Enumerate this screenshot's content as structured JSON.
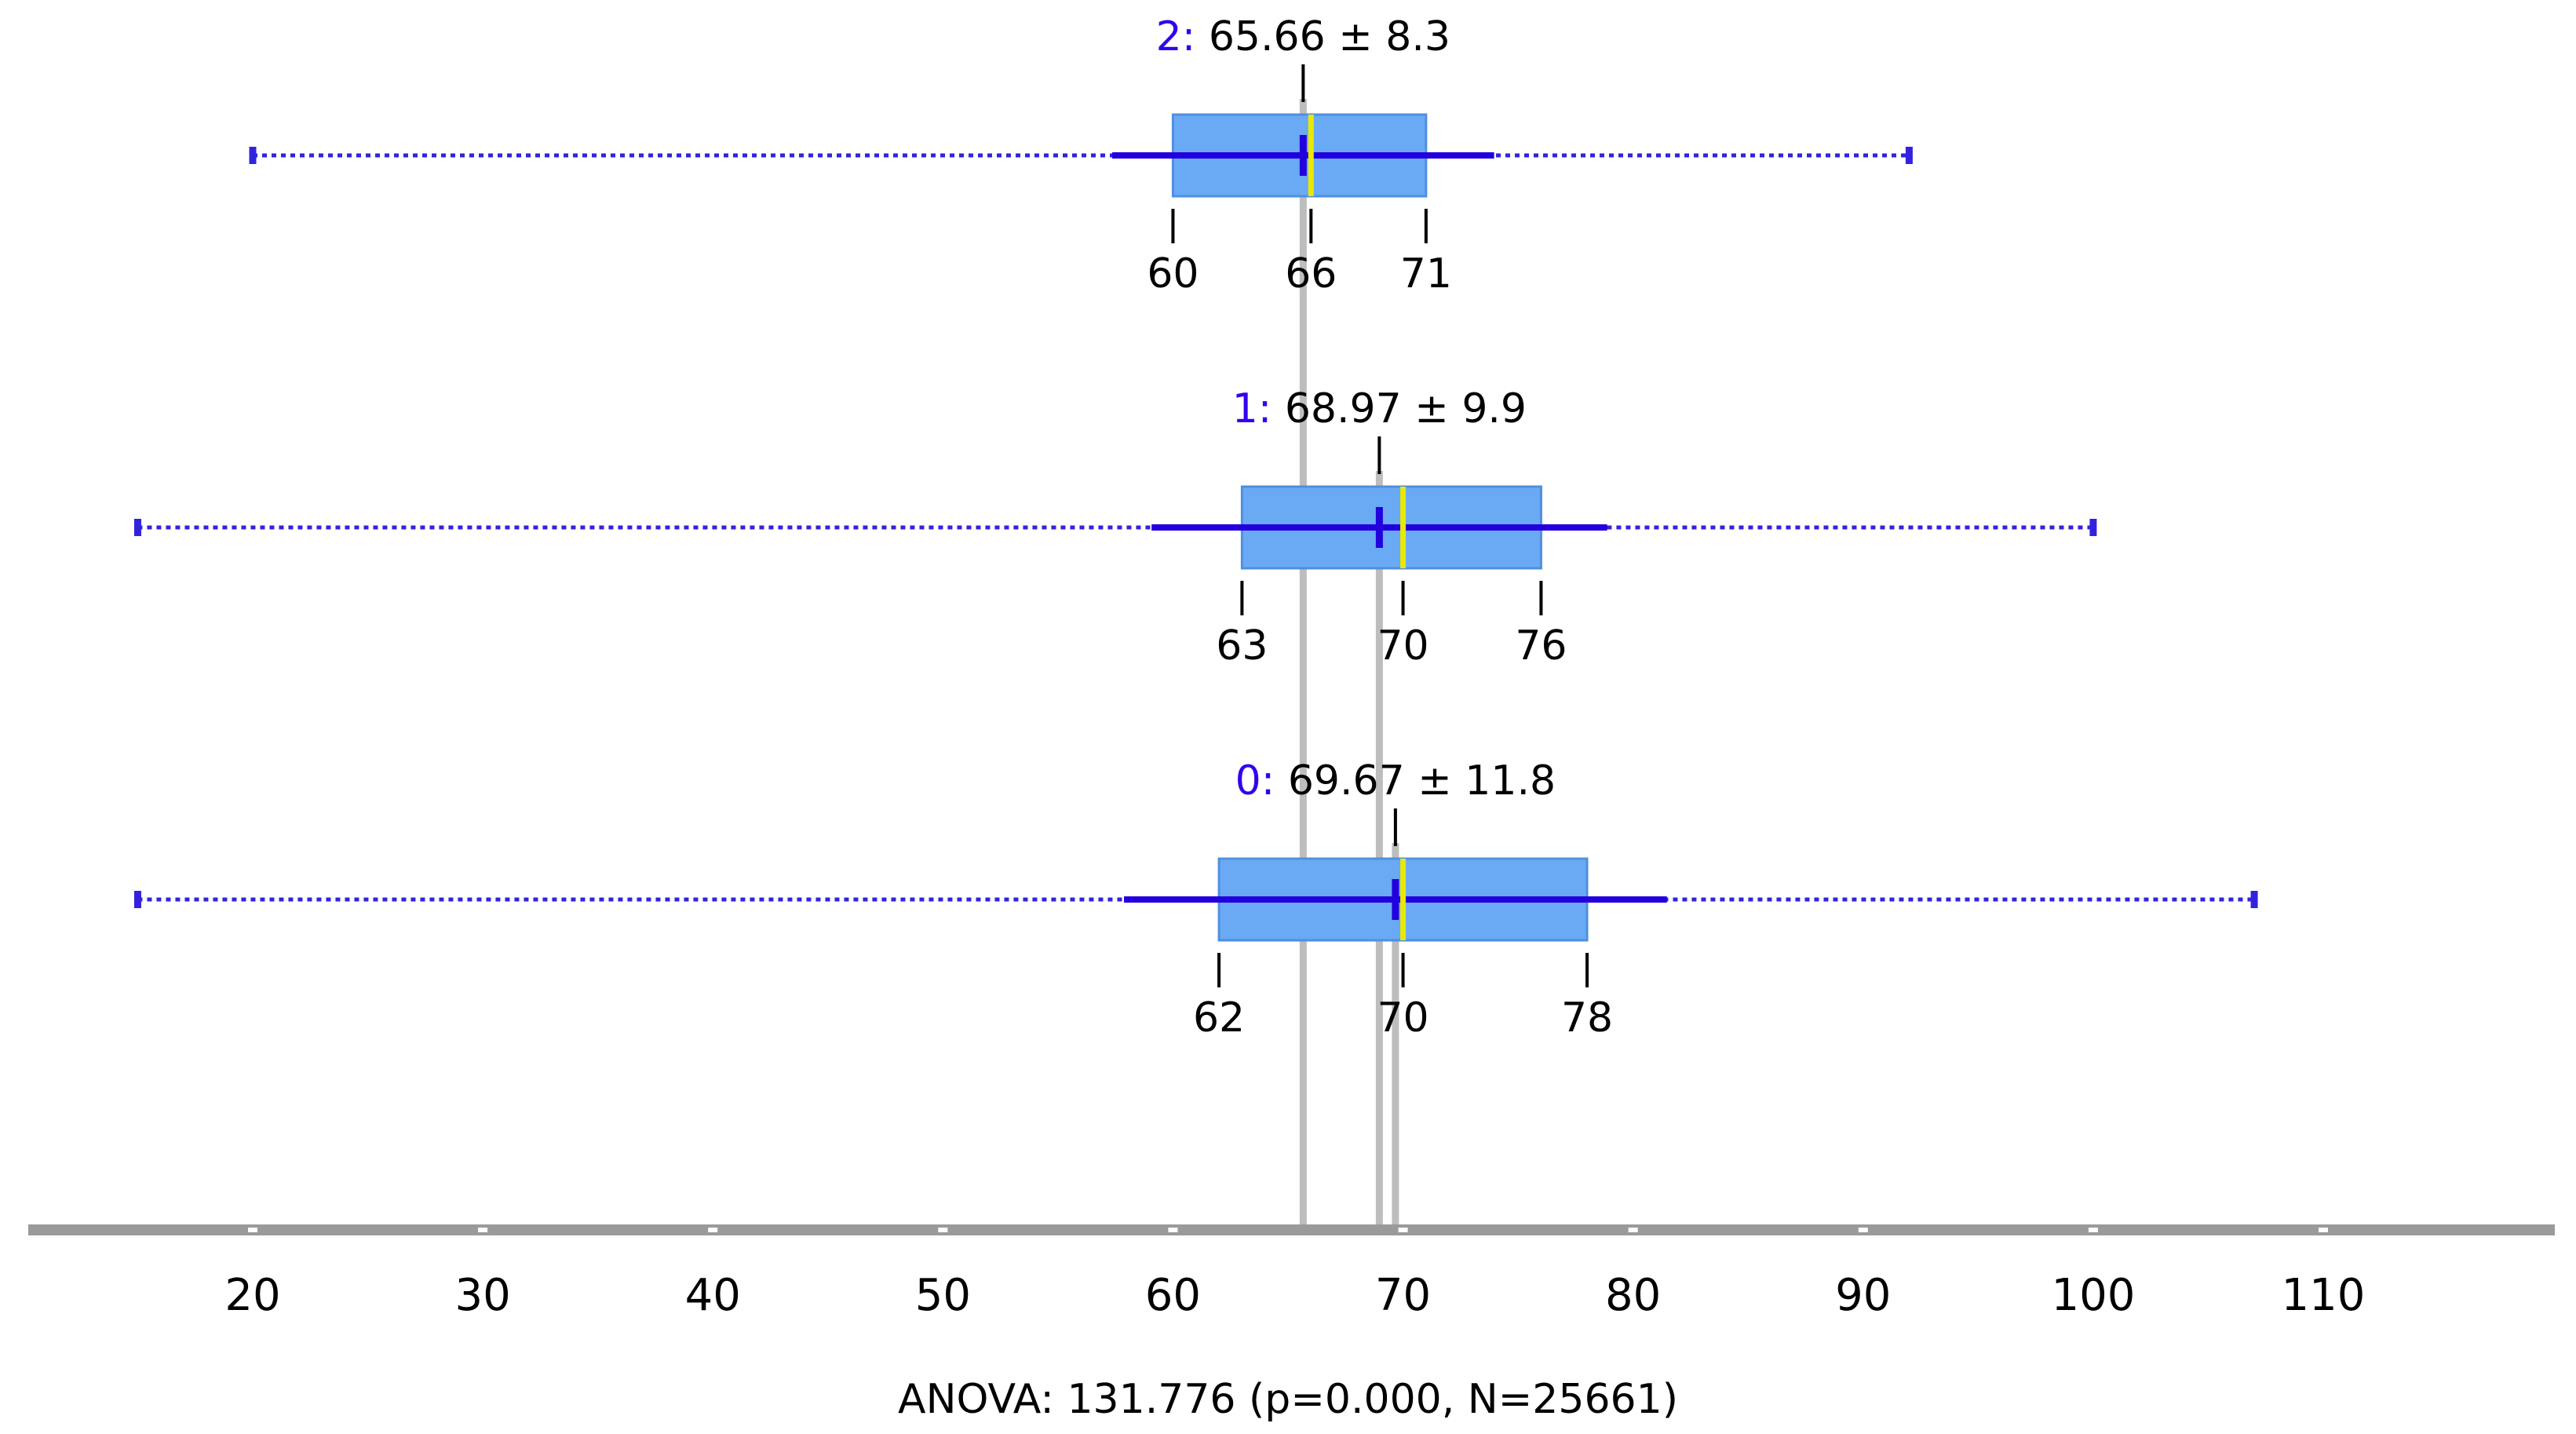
{
  "chart_data": {
    "type": "boxplot",
    "title": "",
    "xlabel": "",
    "ylabel": "",
    "xlim": [
      10,
      120
    ],
    "x_ticks": [
      20,
      30,
      40,
      50,
      60,
      70,
      80,
      90,
      100,
      110
    ],
    "x_tick_labels": [
      "20",
      "30",
      "40",
      "50",
      "60",
      "70",
      "80",
      "90",
      "100",
      "110"
    ],
    "groups": [
      {
        "id": "2",
        "id_label": "2:",
        "stats_label": "65.66 ± 8.3",
        "mean": 65.66,
        "sd": 8.3,
        "min": 20,
        "max": 92,
        "q1": 60,
        "median": 66,
        "q3": 71,
        "q1_label": "60",
        "median_label": "66",
        "q3_label": "71"
      },
      {
        "id": "1",
        "id_label": "1:",
        "stats_label": "68.97 ± 9.9",
        "mean": 68.97,
        "sd": 9.9,
        "min": 15,
        "max": 100,
        "q1": 63,
        "median": 70,
        "q3": 76,
        "q1_label": "63",
        "median_label": "70",
        "q3_label": "76"
      },
      {
        "id": "0",
        "id_label": "0:",
        "stats_label": "69.67 ± 11.8",
        "mean": 69.67,
        "sd": 11.8,
        "min": 15,
        "max": 107,
        "q1": 62,
        "median": 70,
        "q3": 78,
        "q1_label": "62",
        "median_label": "70",
        "q3_label": "78"
      }
    ],
    "footer": "ANOVA: 131.776 (p=0.000, N=25661)"
  },
  "colors": {
    "box_fill": "#6aa9f4",
    "box_stroke": "#4f8fe0",
    "mean_line": "#2200dd",
    "whisker_dotted": "#3322dd",
    "median_line": "#e8e800",
    "guide_line": "#bdbdbd",
    "axis": "#9a9a9a",
    "group_id": "#3300ee",
    "text": "#000000"
  }
}
